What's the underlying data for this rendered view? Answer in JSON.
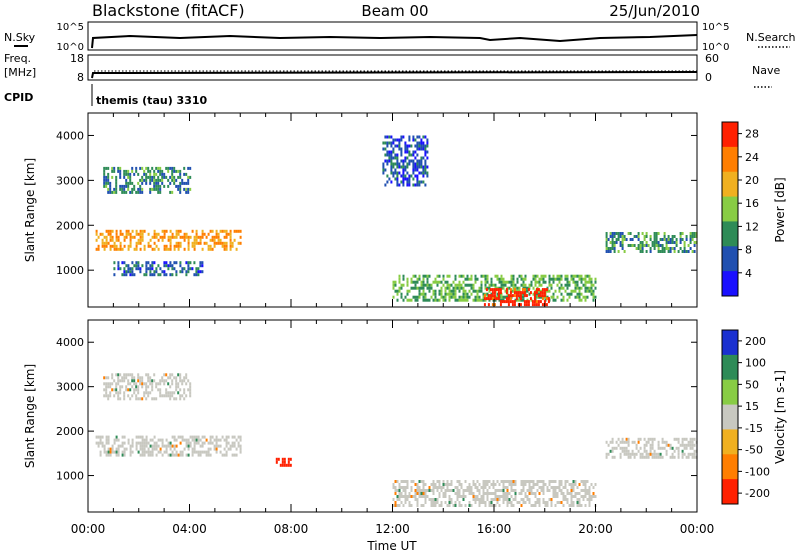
{
  "header": {
    "title": "Blackstone (fitACF)",
    "beam": "Beam 00",
    "date": "25/Jun/2010"
  },
  "strips": {
    "nsky_label": "N.Sky",
    "nsearch_label": "N.Search",
    "freq_label_1": "Freq.",
    "freq_label_2": "[MHz]",
    "nave_label": "Nave",
    "cpid_label": "CPID",
    "cpid_value": "themis (tau) 3310",
    "noise_ticks_left": [
      "10^5",
      "10^0"
    ],
    "noise_ticks_right": [
      "10^5",
      "10^0"
    ],
    "freq_ticks": [
      "18",
      "8"
    ],
    "nave_ticks": [
      "60",
      "0"
    ]
  },
  "chart_data": [
    {
      "type": "heatmap",
      "name": "power",
      "ylabel": "Slant Range [km]",
      "xlabel": "",
      "ylim": [
        180,
        4500
      ],
      "yticks": [
        "1000",
        "2000",
        "3000",
        "4000"
      ],
      "colorbar_label": "Power [dB]",
      "colorbar_ticks": [
        "4",
        "8",
        "12",
        "16",
        "20",
        "24",
        "28"
      ],
      "colorbar_colors": [
        "#1a10ff",
        "#2050b0",
        "#2e8b57",
        "#88cc44",
        "#f0b020",
        "#ff7e00",
        "#ff2000"
      ],
      "regions": [
        {
          "x": [
            0.3,
            6.0
          ],
          "y": [
            1450,
            1900
          ],
          "value": 20
        },
        {
          "x": [
            0.6,
            4.0
          ],
          "y": [
            2700,
            3300
          ],
          "value": 9
        },
        {
          "x": [
            1.0,
            4.5
          ],
          "y": [
            900,
            1200
          ],
          "value": 7
        },
        {
          "x": [
            11.6,
            13.4
          ],
          "y": [
            2900,
            4000
          ],
          "value": 6
        },
        {
          "x": [
            12.0,
            20.0
          ],
          "y": [
            300,
            900
          ],
          "value": 12
        },
        {
          "x": [
            15.6,
            18.2
          ],
          "y": [
            200,
            600
          ],
          "value": 27
        },
        {
          "x": [
            20.4,
            24.0
          ],
          "y": [
            1400,
            1850
          ],
          "value": 10
        }
      ]
    },
    {
      "type": "heatmap",
      "name": "velocity",
      "ylabel": "Slant Range [km]",
      "xlabel": "Time UT",
      "ylim": [
        180,
        4500
      ],
      "yticks": [
        "1000",
        "2000",
        "3000",
        "4000"
      ],
      "xticks": [
        "00:00",
        "04:00",
        "08:00",
        "12:00",
        "16:00",
        "20:00",
        "00:00"
      ],
      "colorbar_label": "Velocity [m s-1]",
      "colorbar_ticks": [
        "200",
        "100",
        "50",
        "15",
        "-15",
        "-50",
        "-100",
        "-200"
      ],
      "colorbar_colors": [
        "#1a30d0",
        "#2e8b57",
        "#88cc44",
        "#c8c8c0",
        "#f0b020",
        "#ff7e00",
        "#ff2000"
      ],
      "regions": [
        {
          "x": [
            0.3,
            6.0
          ],
          "y": [
            1450,
            1900
          ],
          "value": 0
        },
        {
          "x": [
            0.6,
            4.0
          ],
          "y": [
            2700,
            3300
          ],
          "value": 0
        },
        {
          "x": [
            7.4,
            8.0
          ],
          "y": [
            1200,
            1400
          ],
          "value": -150
        },
        {
          "x": [
            12.0,
            20.0
          ],
          "y": [
            300,
            900
          ],
          "value": 0
        },
        {
          "x": [
            20.4,
            24.0
          ],
          "y": [
            1400,
            1850
          ],
          "value": 0
        }
      ]
    }
  ]
}
